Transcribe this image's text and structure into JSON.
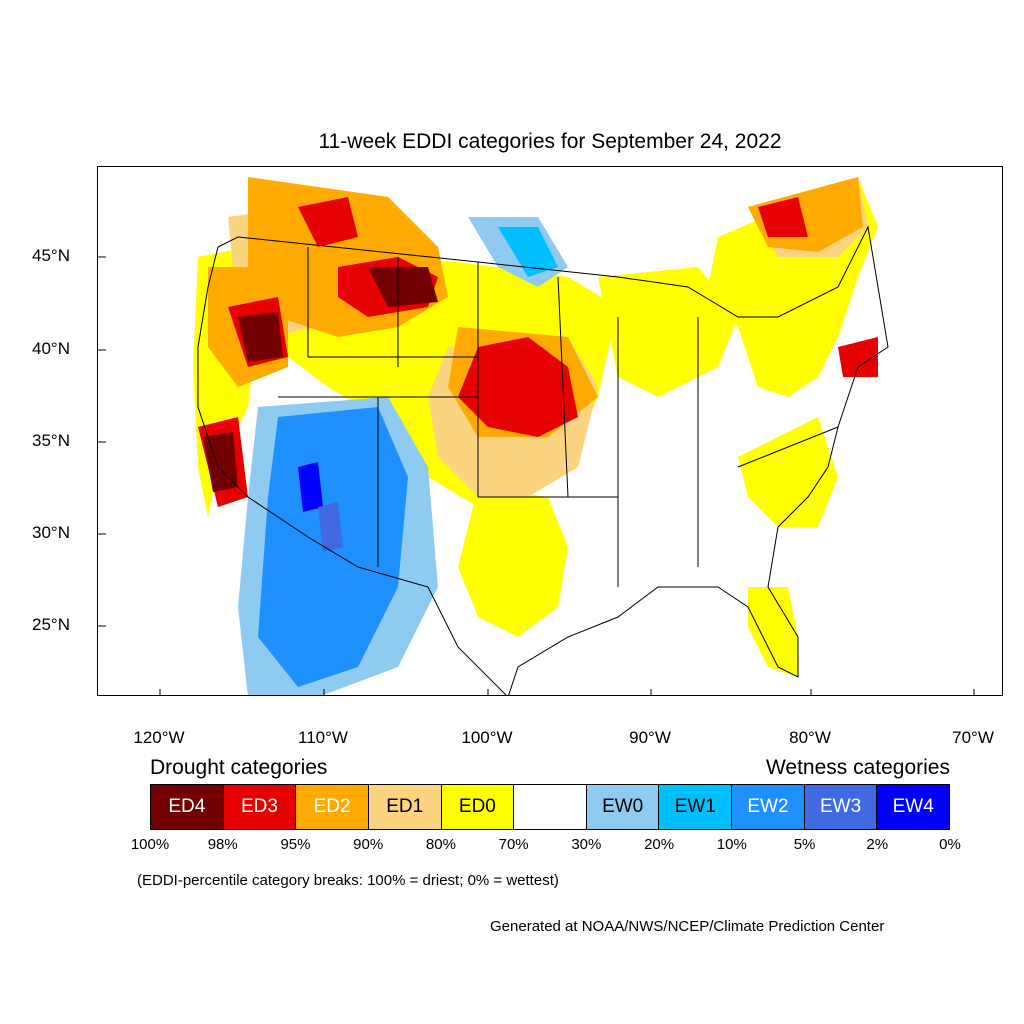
{
  "title": "11-week EDDI categories for September 24, 2022",
  "map": {
    "lat_labels": [
      "45°N",
      "40°N",
      "35°N",
      "30°N",
      "25°N"
    ],
    "lon_labels": [
      "120°W",
      "110°W",
      "100°W",
      "90°W",
      "80°W",
      "70°W"
    ]
  },
  "legend": {
    "drought_heading": "Drought categories",
    "wetness_heading": "Wetness categories",
    "categories": [
      {
        "label": "ED4",
        "color": "#730000",
        "text_color": "#ffffff"
      },
      {
        "label": "ED3",
        "color": "#e60000",
        "text_color": "#ffffff"
      },
      {
        "label": "ED2",
        "color": "#ffaa00",
        "text_color": "#ffffff"
      },
      {
        "label": "ED1",
        "color": "#fcd37f",
        "text_color": "#000000"
      },
      {
        "label": "ED0",
        "color": "#ffff00",
        "text_color": "#000000"
      },
      {
        "label": "",
        "color": "#ffffff",
        "text_color": "#000000"
      },
      {
        "label": "EW0",
        "color": "#8fcbf0",
        "text_color": "#000000"
      },
      {
        "label": "EW1",
        "color": "#00bfff",
        "text_color": "#000000"
      },
      {
        "label": "EW2",
        "color": "#1e90ff",
        "text_color": "#ffffff"
      },
      {
        "label": "EW3",
        "color": "#4169e1",
        "text_color": "#ffffff"
      },
      {
        "label": "EW4",
        "color": "#0000ff",
        "text_color": "#ffffff"
      }
    ],
    "percentiles": [
      "100%",
      "98%",
      "95%",
      "90%",
      "80%",
      "70%",
      "30%",
      "20%",
      "10%",
      "5%",
      "2%",
      "0%"
    ]
  },
  "note": "(EDDI-percentile category breaks: 100% = driest; 0% = wettest)",
  "credit": "Generated at NOAA/NWS/NCEP/Climate Prediction Center"
}
